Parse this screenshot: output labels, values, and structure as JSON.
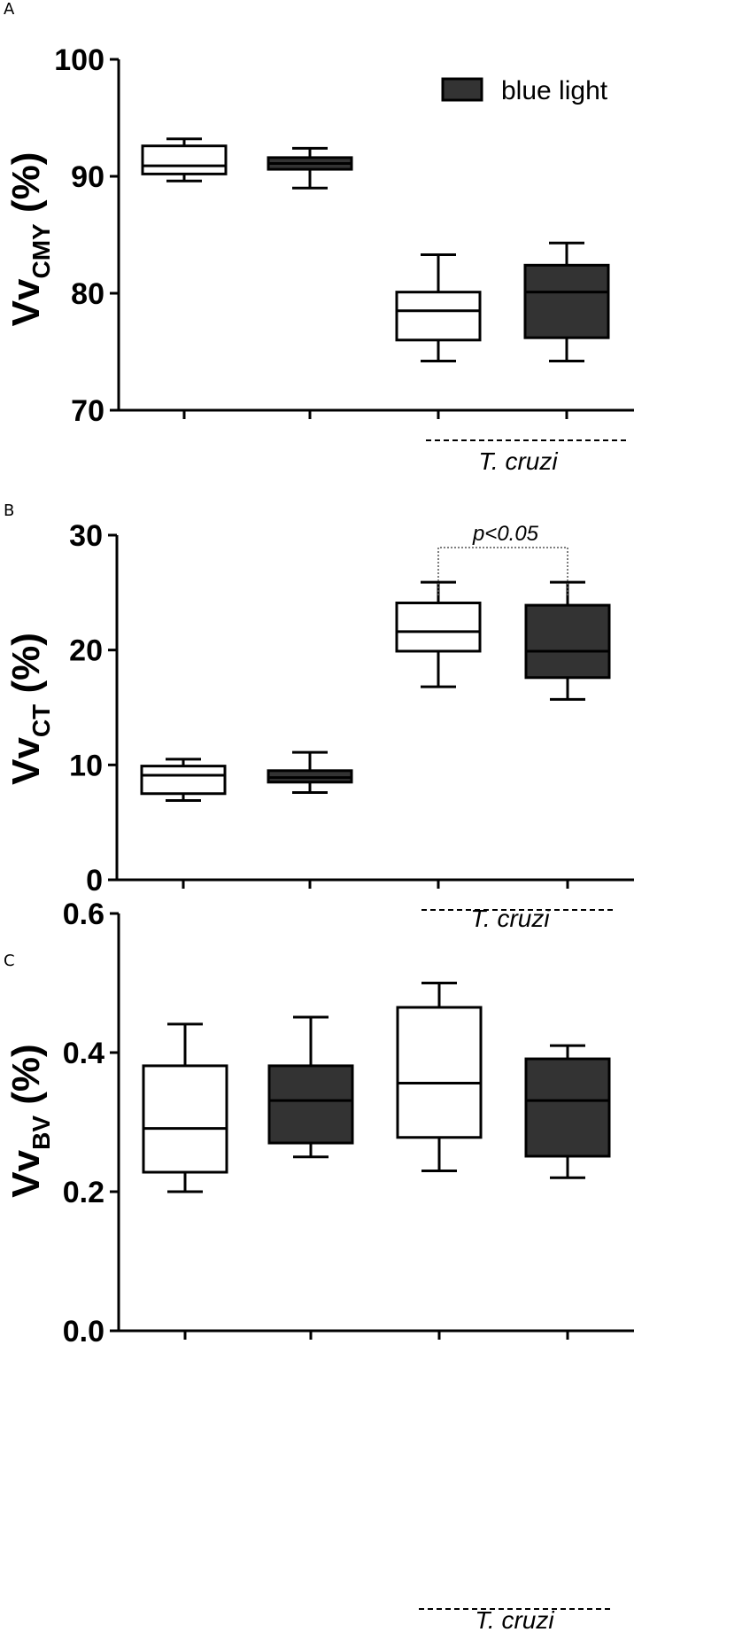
{
  "legend": {
    "label": "blue light",
    "fill": "#333333"
  },
  "chart_data": [
    {
      "type": "box",
      "panel_label": "A",
      "ylabel": "Vv",
      "ylabel_sub": "CMY",
      "ylabel_unit": " (%)",
      "ylim": [
        70,
        100
      ],
      "yticks": [
        "70",
        "80",
        "90",
        "100"
      ],
      "group_label": "T. cruzi",
      "boxes": [
        {
          "min": 89.6,
          "q1": 90.2,
          "median": 90.9,
          "q3": 92.6,
          "max": 93.2,
          "fill": "#ffffff"
        },
        {
          "min": 89.0,
          "q1": 90.6,
          "median": 91.1,
          "q3": 91.6,
          "max": 92.4,
          "fill": "#333333"
        },
        {
          "min": 74.2,
          "q1": 76.0,
          "median": 78.5,
          "q3": 80.1,
          "max": 83.3,
          "fill": "#ffffff"
        },
        {
          "min": 74.2,
          "q1": 76.2,
          "median": 80.1,
          "q3": 82.4,
          "max": 84.3,
          "fill": "#333333"
        }
      ]
    },
    {
      "type": "box",
      "panel_label": "B",
      "ylabel": "Vv",
      "ylabel_sub": "CT",
      "ylabel_unit": " (%)",
      "ylim": [
        0,
        30
      ],
      "yticks": [
        "0",
        "10",
        "20",
        "30"
      ],
      "group_label": "T. cruzi",
      "significance": {
        "text": "p<0.05",
        "between": [
          2,
          3
        ]
      },
      "boxes": [
        {
          "min": 6.9,
          "q1": 7.5,
          "median": 9.1,
          "q3": 9.9,
          "max": 10.5,
          "fill": "#ffffff"
        },
        {
          "min": 7.6,
          "q1": 8.5,
          "median": 8.9,
          "q3": 9.5,
          "max": 11.1,
          "fill": "#333333"
        },
        {
          "min": 16.8,
          "q1": 19.9,
          "median": 21.6,
          "q3": 24.1,
          "max": 25.9,
          "fill": "#ffffff"
        },
        {
          "min": 15.7,
          "q1": 17.6,
          "median": 19.9,
          "q3": 23.9,
          "max": 25.9,
          "fill": "#333333"
        }
      ]
    },
    {
      "type": "box",
      "panel_label": "C",
      "ylabel": "Vv",
      "ylabel_sub": "BV",
      "ylabel_unit": " (%)",
      "ylim": [
        0.0,
        0.6
      ],
      "yticks": [
        "0.0",
        "0.2",
        "0.4",
        "0.6"
      ],
      "group_label": "T. cruzi",
      "boxes": [
        {
          "min": 0.2,
          "q1": 0.228,
          "median": 0.291,
          "q3": 0.381,
          "max": 0.441,
          "fill": "#ffffff"
        },
        {
          "min": 0.25,
          "q1": 0.27,
          "median": 0.331,
          "q3": 0.381,
          "max": 0.451,
          "fill": "#333333"
        },
        {
          "min": 0.23,
          "q1": 0.278,
          "median": 0.356,
          "q3": 0.465,
          "max": 0.5,
          "fill": "#ffffff"
        },
        {
          "min": 0.22,
          "q1": 0.251,
          "median": 0.331,
          "q3": 0.391,
          "max": 0.41,
          "fill": "#333333"
        }
      ]
    }
  ]
}
